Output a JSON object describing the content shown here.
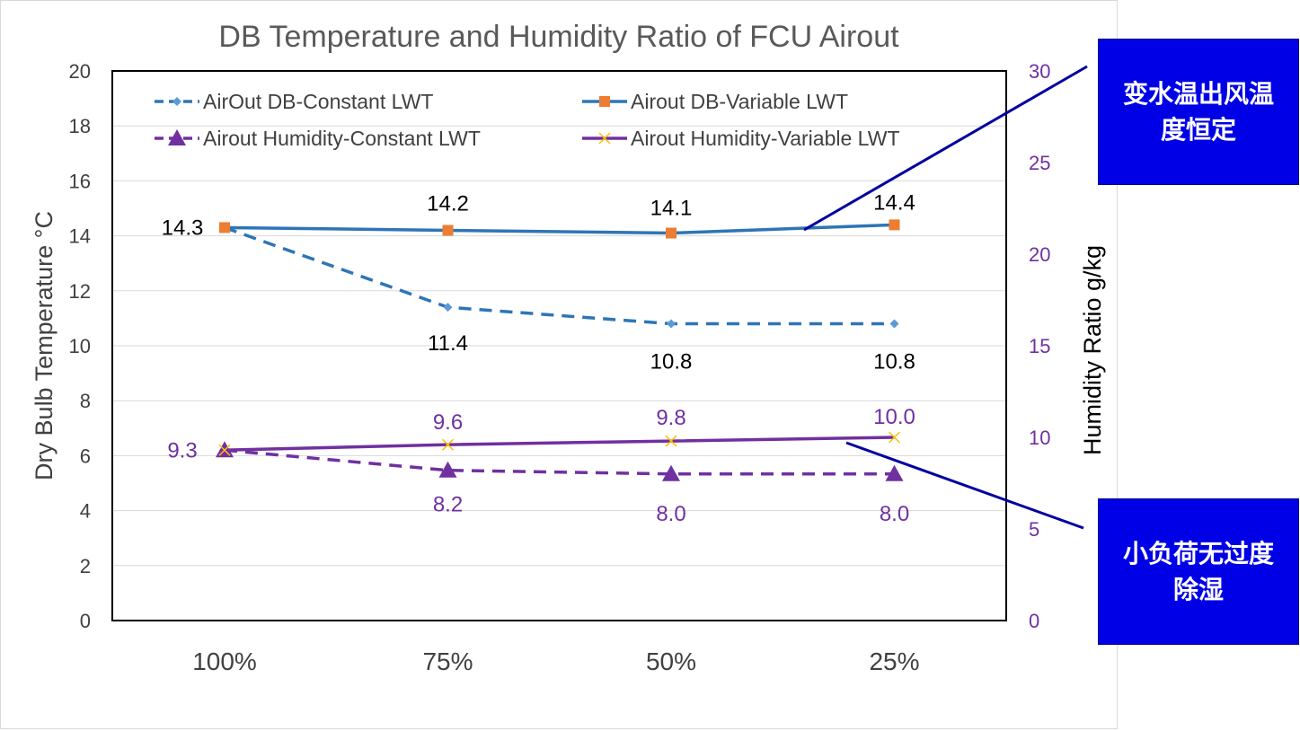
{
  "chart_data": {
    "type": "line",
    "title": "DB Temperature and Humidity Ratio of FCU Airout",
    "categories": [
      "100%",
      "75%",
      "50%",
      "25%"
    ],
    "y_left": {
      "label": "Dry Bulb Temperature °C",
      "ylim": [
        0,
        20
      ],
      "ticks": [
        "0",
        "2",
        "4",
        "6",
        "8",
        "10",
        "12",
        "14",
        "16",
        "18",
        "20"
      ]
    },
    "y_right": {
      "label": "Humidity Ratio g/kg",
      "ylim": [
        0,
        30
      ],
      "ticks": [
        "0",
        "5",
        "10",
        "15",
        "20",
        "25",
        "30"
      ]
    },
    "grid": true,
    "legend_position": "top",
    "series": [
      {
        "name": "AirOut DB-Constant LWT",
        "axis": "left",
        "values": [
          14.3,
          11.4,
          10.8,
          10.8
        ],
        "labels": [
          "",
          "11.4",
          "10.8",
          "10.8"
        ],
        "color": "#2e75b6",
        "dash": true,
        "marker": "diamond"
      },
      {
        "name": "Airout DB-Variable LWT",
        "axis": "left",
        "values": [
          14.3,
          14.2,
          14.1,
          14.4
        ],
        "labels": [
          "14.3",
          "14.2",
          "14.1",
          "14.4"
        ],
        "color": "#2e75b6",
        "dash": false,
        "marker": "square",
        "marker_color": "#ed7d31"
      },
      {
        "name": "Airout Humidity-Constant LWT",
        "axis": "right",
        "values": [
          9.3,
          8.2,
          8.0,
          8.0
        ],
        "labels": [
          "",
          "8.2",
          "8.0",
          "8.0"
        ],
        "color": "#7030a0",
        "dash": true,
        "marker": "triangle"
      },
      {
        "name": "Airout Humidity-Variable LWT",
        "axis": "right",
        "values": [
          9.3,
          9.6,
          9.8,
          10.0
        ],
        "labels": [
          "9.3",
          "9.6",
          "9.8",
          "10.0"
        ],
        "color": "#7030a0",
        "dash": false,
        "marker": "x",
        "marker_color": "#ffc000"
      }
    ]
  },
  "callouts": {
    "top": "变水温出风温度恒定",
    "bottom": "小负荷无过度除湿"
  },
  "colors": {
    "callout_bg": "#0000e6",
    "axis_right_text": "#7030a0",
    "grid": "#d9d9d9"
  }
}
